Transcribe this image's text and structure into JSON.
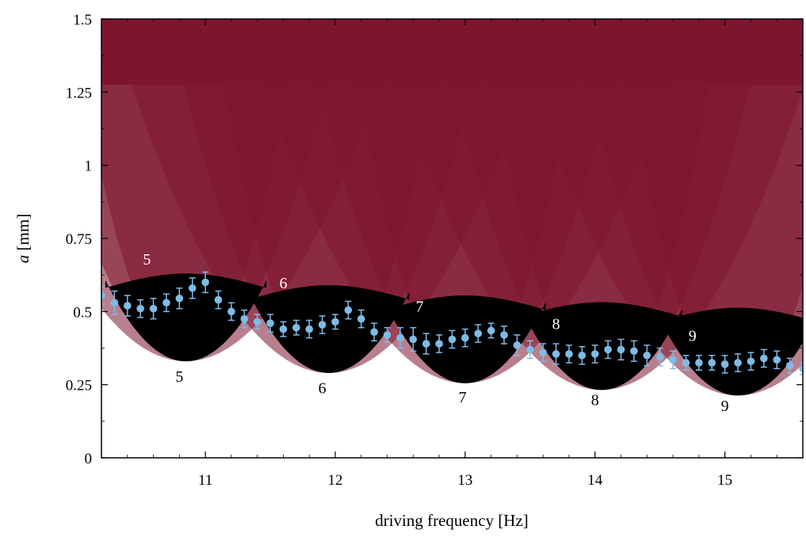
{
  "chart_data": {
    "type": "scatter",
    "xlabel": "driving frequency [Hz]",
    "ylabel_italic": "a",
    "ylabel_unit": " [mm]",
    "xlim": [
      10.2,
      15.6
    ],
    "ylim": [
      0,
      1.5
    ],
    "x_ticks": [
      11,
      12,
      13,
      14,
      15
    ],
    "x_tick_labels": [
      "11",
      "12",
      "13",
      "14",
      "15"
    ],
    "y_ticks": [
      0,
      0.25,
      0.5,
      0.75,
      1,
      1.25,
      1.5
    ],
    "y_tick_labels": [
      "0",
      "0.25",
      "0.5",
      "0.75",
      "1",
      "1.25",
      "1.5"
    ],
    "grid": false,
    "colors": {
      "region_fill": "#7e1530",
      "upper_background": "#86152f",
      "tongue_core": "#000000",
      "points": "#7fbbe6",
      "white_label": "#ffffff",
      "black_label": "#000000"
    },
    "tongues": [
      {
        "mode": "5",
        "center": 10.85,
        "min_a": 0.33
      },
      {
        "mode": "6",
        "center": 11.95,
        "min_a": 0.29
      },
      {
        "mode": "7",
        "center": 13.0,
        "min_a": 0.255
      },
      {
        "mode": "8",
        "center": 14.05,
        "min_a": 0.232
      },
      {
        "mode": "9",
        "center": 15.1,
        "min_a": 0.213
      }
    ],
    "region_labels": [
      {
        "text": "5",
        "x": 10.55,
        "y": 0.66,
        "color": "white"
      },
      {
        "text": "6",
        "x": 11.6,
        "y": 0.58,
        "color": "white"
      },
      {
        "text": "7",
        "x": 12.65,
        "y": 0.5,
        "color": "white"
      },
      {
        "text": "8",
        "x": 13.7,
        "y": 0.44,
        "color": "white"
      },
      {
        "text": "9",
        "x": 14.75,
        "y": 0.4,
        "color": "white"
      },
      {
        "text": "5",
        "x": 10.8,
        "y": 0.26,
        "color": "black"
      },
      {
        "text": "6",
        "x": 11.9,
        "y": 0.22,
        "color": "black"
      },
      {
        "text": "7",
        "x": 12.98,
        "y": 0.19,
        "color": "black"
      },
      {
        "text": "8",
        "x": 14.0,
        "y": 0.18,
        "color": "black"
      },
      {
        "text": "9",
        "x": 15.0,
        "y": 0.16,
        "color": "black"
      }
    ],
    "series": [
      {
        "x": [
          10.2,
          10.3,
          10.4,
          10.5,
          10.6,
          10.7,
          10.8,
          10.9,
          11.0,
          11.1,
          11.2,
          11.3,
          11.4,
          11.5,
          11.6,
          11.7,
          11.8,
          11.9,
          12.0,
          12.1,
          12.2,
          12.3,
          12.4,
          12.5,
          12.6,
          12.7,
          12.8,
          12.9,
          13.0,
          13.1,
          13.2,
          13.3,
          13.4,
          13.5,
          13.6,
          13.7,
          13.8,
          13.9,
          14.0,
          14.1,
          14.2,
          14.3,
          14.4,
          14.5,
          14.6,
          14.7,
          14.8,
          14.9,
          15.0,
          15.1,
          15.2,
          15.3,
          15.4,
          15.5,
          15.6
        ],
        "y": [
          0.555,
          0.53,
          0.52,
          0.51,
          0.51,
          0.53,
          0.545,
          0.58,
          0.6,
          0.54,
          0.5,
          0.475,
          0.465,
          0.46,
          0.44,
          0.445,
          0.44,
          0.455,
          0.465,
          0.505,
          0.475,
          0.43,
          0.42,
          0.41,
          0.405,
          0.39,
          0.39,
          0.405,
          0.41,
          0.425,
          0.435,
          0.42,
          0.385,
          0.37,
          0.36,
          0.355,
          0.355,
          0.35,
          0.355,
          0.37,
          0.37,
          0.365,
          0.35,
          0.345,
          0.335,
          0.325,
          0.325,
          0.325,
          0.32,
          0.325,
          0.33,
          0.34,
          0.335,
          0.315,
          0.305
        ],
        "err": [
          0.03,
          0.04,
          0.035,
          0.03,
          0.035,
          0.03,
          0.035,
          0.035,
          0.035,
          0.03,
          0.03,
          0.03,
          0.025,
          0.03,
          0.025,
          0.025,
          0.03,
          0.03,
          0.025,
          0.03,
          0.03,
          0.03,
          0.025,
          0.035,
          0.04,
          0.035,
          0.03,
          0.03,
          0.03,
          0.03,
          0.025,
          0.03,
          0.035,
          0.03,
          0.03,
          0.035,
          0.03,
          0.03,
          0.03,
          0.03,
          0.035,
          0.035,
          0.035,
          0.03,
          0.03,
          0.025,
          0.025,
          0.025,
          0.03,
          0.03,
          0.03,
          0.03,
          0.03,
          0.025,
          0.02
        ]
      }
    ]
  }
}
